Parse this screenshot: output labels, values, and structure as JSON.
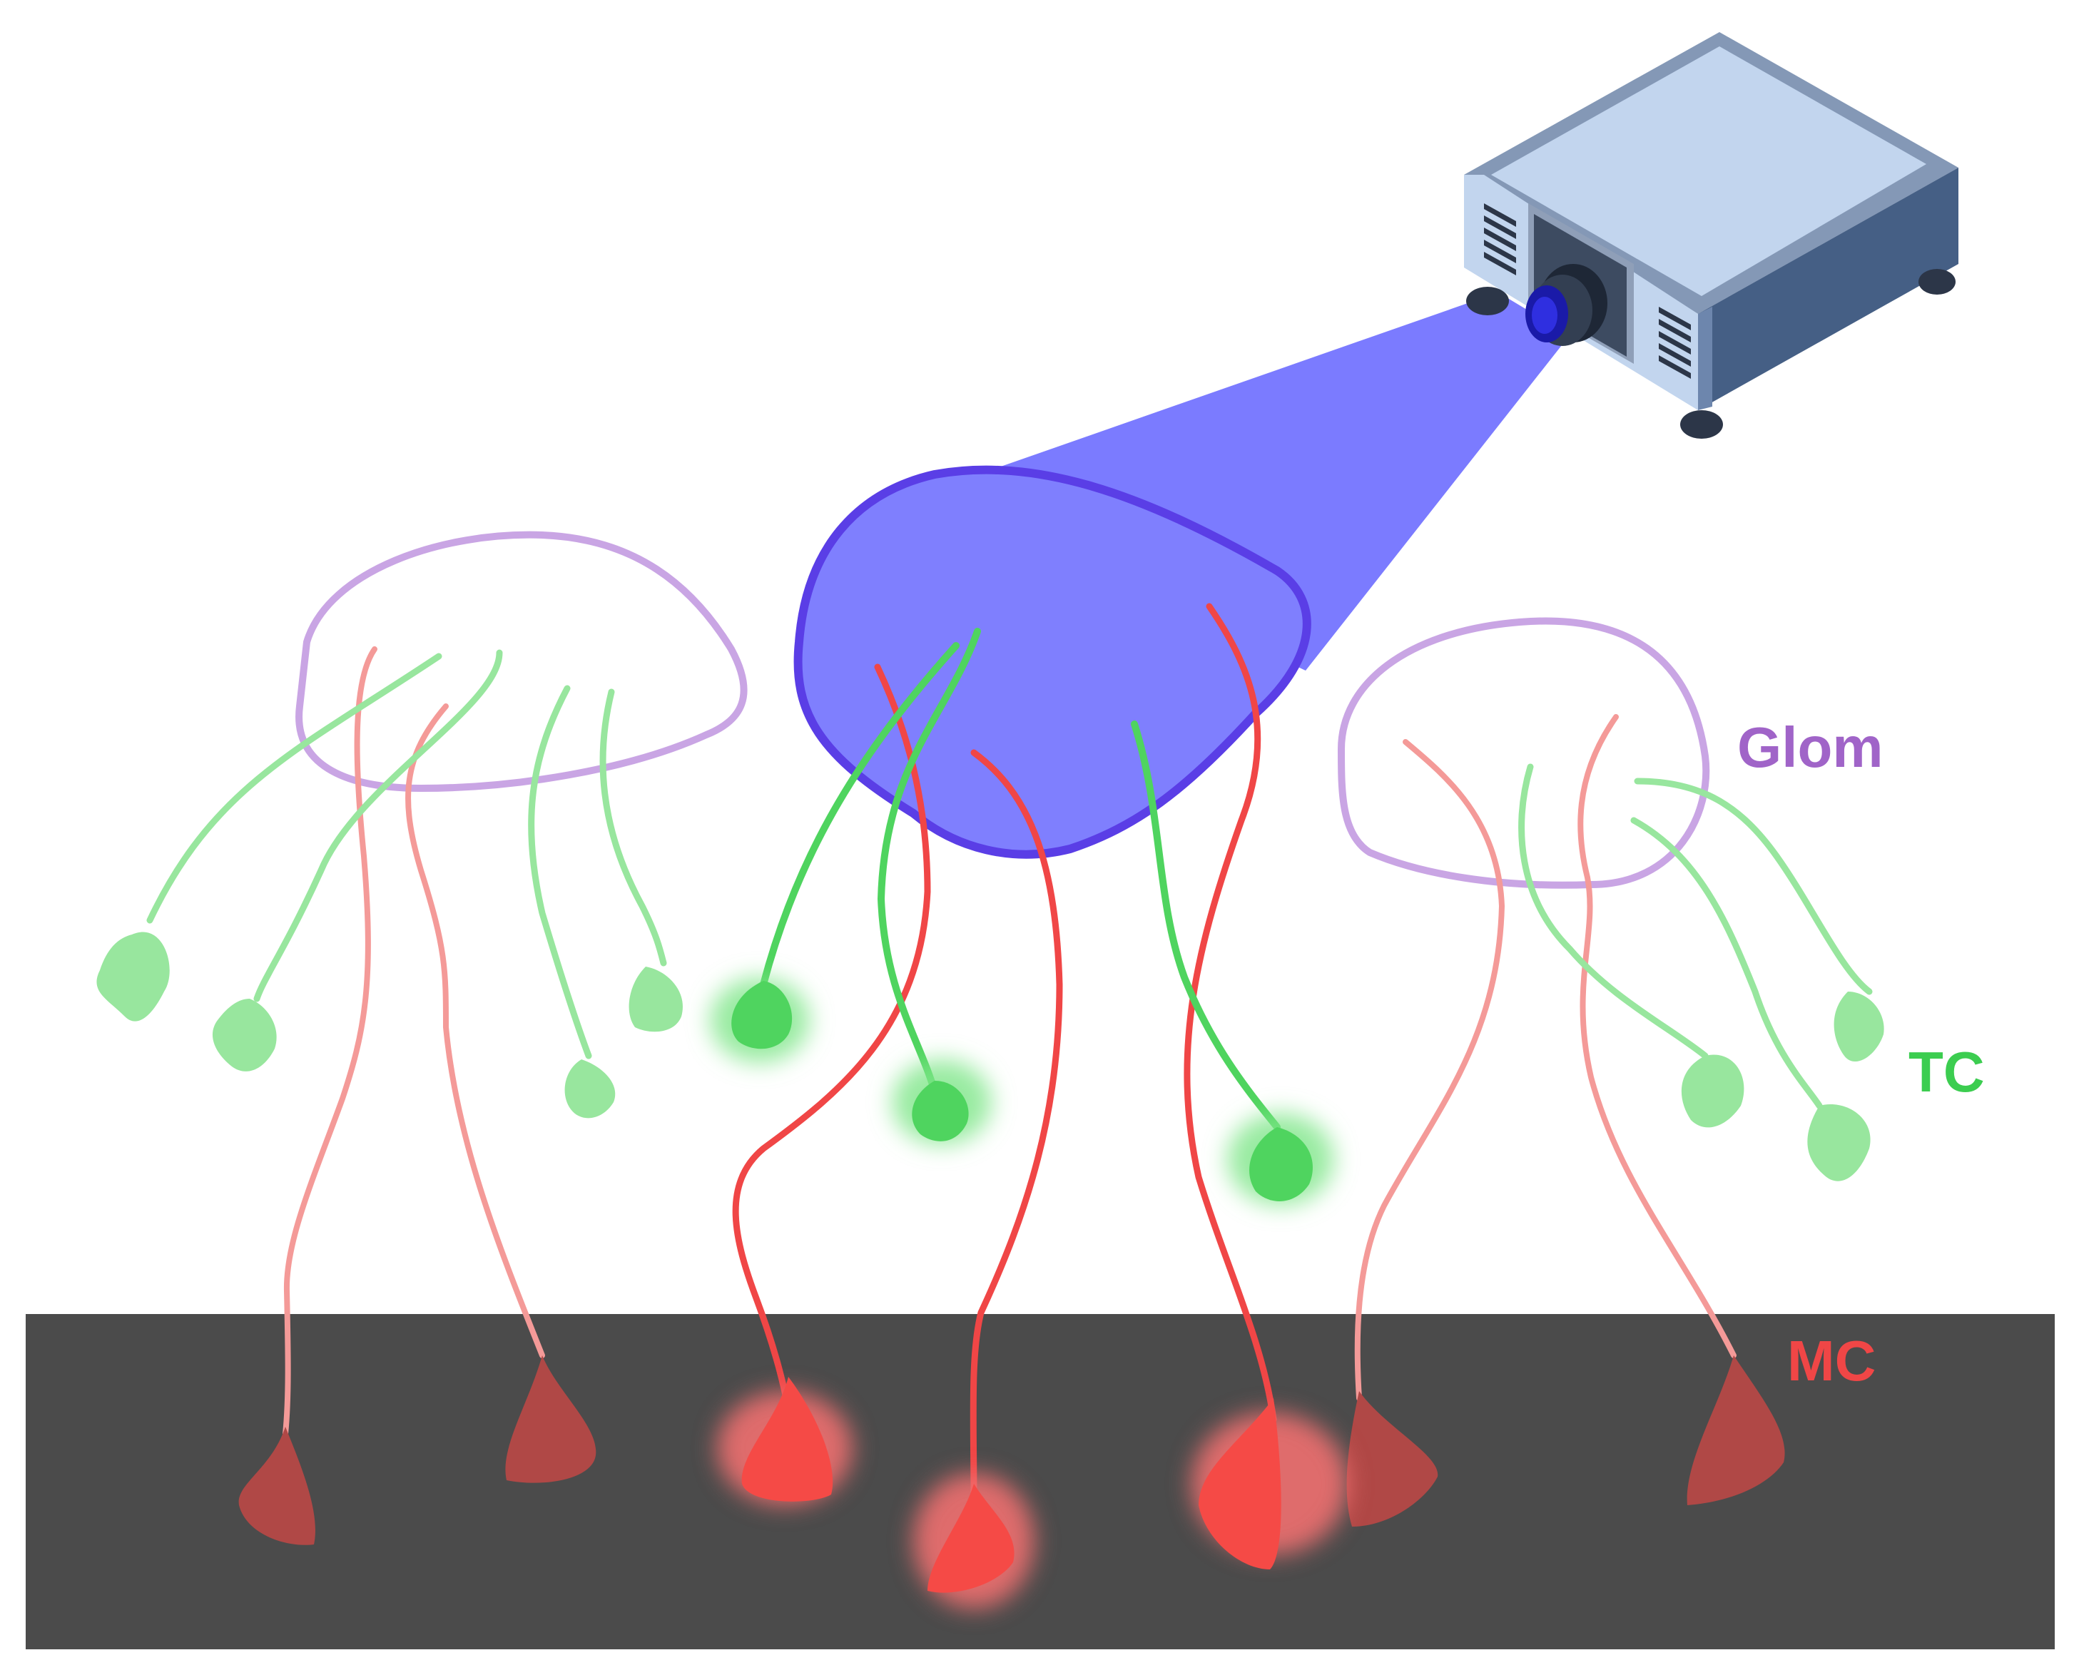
{
  "labels": {
    "glom": "Glom",
    "tc": "TC",
    "mc": "MC"
  },
  "colors": {
    "glom": "#a064c8",
    "tc": "#3ccd50",
    "mc": "#f04646",
    "light_beam": "#7b7bff",
    "mitral_layer": "#4b4b4b",
    "projector_body": "#c2d5ee",
    "projector_side": "#455f85"
  },
  "icons": {
    "projector": "projector-icon"
  }
}
